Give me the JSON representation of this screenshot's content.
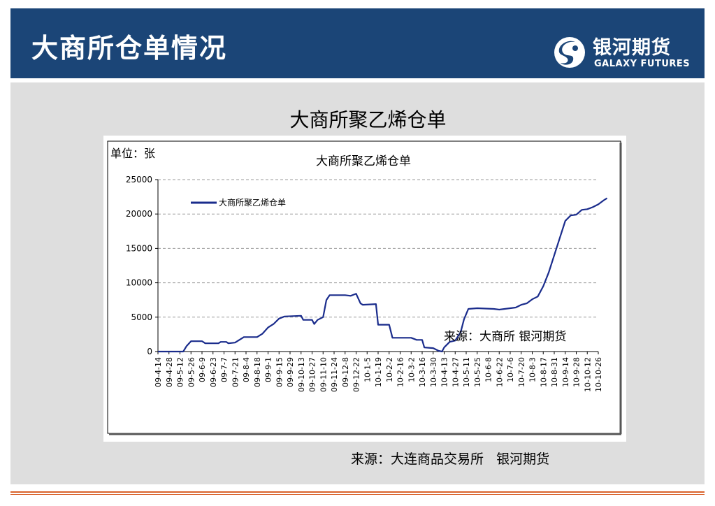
{
  "slide": {
    "title": "大商所仓单情况",
    "logo_cn": "银河期货",
    "logo_en": "GALAXY FUTURES",
    "chart_heading": "大商所聚乙烯仓单",
    "source": "来源：大连商品交易所   银河期货",
    "colors": {
      "header": "#1b4577",
      "panel": "#dedede",
      "accent_line": "#d9622b",
      "series": "#1a2c8c"
    }
  },
  "chart_data": {
    "type": "line",
    "title": "大商所聚乙烯仓单",
    "unit_label": "单位：张",
    "source_annotation": "来源：大商所  银河期货",
    "legend": {
      "position": "top-left"
    },
    "grid": {
      "horizontal": true,
      "style": "dashed"
    },
    "ylim": [
      0,
      25000
    ],
    "yticks": [
      0,
      5000,
      10000,
      15000,
      20000,
      25000
    ],
    "xticks": [
      "09-4-14",
      "09-4-28",
      "09-5-12",
      "09-5-26",
      "09-6-9",
      "09-6-23",
      "09-7-7",
      "09-7-21",
      "09-8-4",
      "09-8-18",
      "09-9-1",
      "09-9-15",
      "09-9-29",
      "09-10-13",
      "09-10-27",
      "09-11-10",
      "09-11-24",
      "09-12-8",
      "09-12-22",
      "10-1-5",
      "10-1-19",
      "10-2-2",
      "10-2-16",
      "10-3-2",
      "10-3-16",
      "10-3-30",
      "10-4-13",
      "10-4-27",
      "10-5-11",
      "10-5-25",
      "10-6-8",
      "10-6-22",
      "10-7-6",
      "10-7-20",
      "10-8-3",
      "10-8-17",
      "10-8-31",
      "10-9-14",
      "10-9-28",
      "10-10-12",
      "10-10-26"
    ],
    "series": [
      {
        "name": "大商所聚乙烯仓单",
        "points": [
          [
            0,
            0
          ],
          [
            2.3,
            0
          ],
          [
            2.6,
            800
          ],
          [
            3,
            1500
          ],
          [
            4,
            1500
          ],
          [
            4.3,
            1200
          ],
          [
            5.5,
            1200
          ],
          [
            5.7,
            1400
          ],
          [
            6.2,
            1400
          ],
          [
            6.4,
            1200
          ],
          [
            7,
            1300
          ],
          [
            7.5,
            1800
          ],
          [
            7.8,
            2100
          ],
          [
            9,
            2100
          ],
          [
            9.5,
            2600
          ],
          [
            10,
            3500
          ],
          [
            10.5,
            4000
          ],
          [
            11,
            4800
          ],
          [
            11.5,
            5100
          ],
          [
            13,
            5200
          ],
          [
            13.2,
            4600
          ],
          [
            14,
            4600
          ],
          [
            14.2,
            4000
          ],
          [
            14.5,
            4600
          ],
          [
            15,
            5000
          ],
          [
            15.3,
            7500
          ],
          [
            15.6,
            8200
          ],
          [
            17,
            8200
          ],
          [
            17.5,
            8100
          ],
          [
            18,
            8400
          ],
          [
            18.4,
            7000
          ],
          [
            18.6,
            6800
          ],
          [
            19.8,
            6900
          ],
          [
            20,
            3900
          ],
          [
            21,
            3900
          ],
          [
            21.3,
            2000
          ],
          [
            23,
            2000
          ],
          [
            23.5,
            1700
          ],
          [
            24,
            1700
          ],
          [
            24.2,
            600
          ],
          [
            25,
            500
          ],
          [
            25.5,
            100
          ],
          [
            25.8,
            0
          ],
          [
            26,
            600
          ],
          [
            26.5,
            1400
          ],
          [
            27,
            1600
          ],
          [
            27.5,
            2800
          ],
          [
            27.8,
            4700
          ],
          [
            28.2,
            6200
          ],
          [
            29,
            6300
          ],
          [
            30.5,
            6200
          ],
          [
            31,
            6100
          ],
          [
            32,
            6300
          ],
          [
            32.5,
            6400
          ],
          [
            33,
            6800
          ],
          [
            33.5,
            7000
          ],
          [
            34,
            7600
          ],
          [
            34.5,
            8000
          ],
          [
            35,
            9500
          ],
          [
            35.5,
            11500
          ],
          [
            36,
            14000
          ],
          [
            36.5,
            16500
          ],
          [
            37,
            19000
          ],
          [
            37.5,
            19800
          ],
          [
            38,
            19900
          ],
          [
            38.5,
            20600
          ],
          [
            39,
            20700
          ],
          [
            39.5,
            21000
          ],
          [
            40,
            21400
          ],
          [
            40.5,
            22000
          ],
          [
            40.8,
            22300
          ]
        ]
      }
    ]
  }
}
